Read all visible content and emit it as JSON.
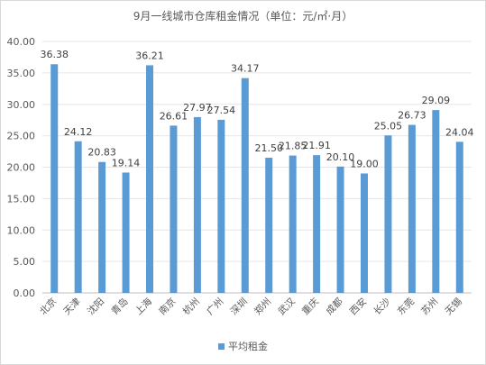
{
  "chart_data": {
    "type": "bar",
    "title": "9月一线城市仓库租金情况（单位：元/㎡·月）",
    "categories": [
      "北京",
      "天津",
      "沈阳",
      "青岛",
      "上海",
      "南京",
      "杭州",
      "广州",
      "深圳",
      "郑州",
      "武汉",
      "重庆",
      "成都",
      "西安",
      "长沙",
      "东莞",
      "苏州",
      "无锡"
    ],
    "series": [
      {
        "name": "平均租金",
        "values": [
          36.38,
          24.12,
          20.83,
          19.14,
          36.21,
          26.61,
          27.97,
          27.54,
          34.17,
          21.5,
          21.85,
          21.91,
          20.1,
          19.0,
          25.05,
          26.73,
          29.09,
          24.04
        ],
        "labels": [
          "36.38",
          "24.12",
          "20.83",
          "19.14",
          "36.21",
          "26.61",
          "27.97",
          "27.54",
          "34.17",
          "21.50",
          "21.85",
          "21.91",
          "20.10",
          "19.00",
          "25.05",
          "26.73",
          "29.09",
          "24.04"
        ],
        "color": "#5b9bd5"
      }
    ],
    "yticks": [
      "0.00",
      "5.00",
      "10.00",
      "15.00",
      "20.00",
      "25.00",
      "30.00",
      "35.00",
      "40.00"
    ],
    "ylim": [
      0,
      40
    ],
    "grid": true,
    "legend_position": "bottom"
  }
}
